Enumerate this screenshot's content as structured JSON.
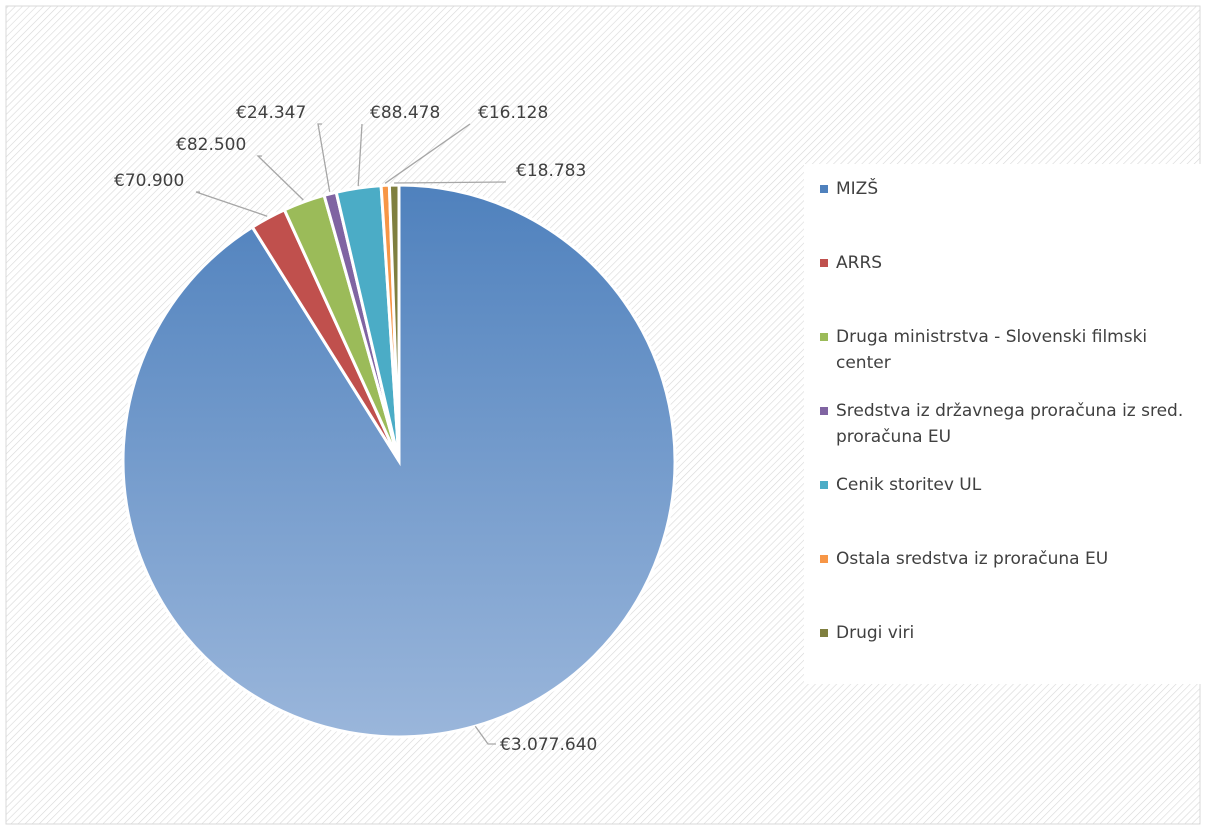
{
  "chart_data": {
    "type": "pie",
    "title": "",
    "series": [
      {
        "values": [
          3077640,
          70900,
          82500,
          24347,
          88478,
          16128,
          18783
        ]
      }
    ],
    "categories": [
      "MIZŠ",
      "ARRS",
      "Druga ministrstva - Slovenski filmski center",
      "Sredstva iz državnega proračuna iz sred. proračuna EU",
      "Cenik storitev UL",
      "Ostala sredstva iz proračuna EU",
      "Drugi viri"
    ],
    "data_labels": [
      "€3.077.640",
      "€70.900",
      "€82.500",
      "€24.347",
      "€88.478",
      "€16.128",
      "€18.783"
    ],
    "colors": [
      "#4f81bd",
      "#c0504d",
      "#9bbb59",
      "#8064a2",
      "#4bacc6",
      "#f79646",
      "#7f7f3f"
    ],
    "legend_position": "right"
  },
  "legend": {
    "items": [
      "MIZŠ",
      "ARRS",
      "Druga ministrstva - Slovenski filmski center",
      "Sredstva iz državnega proračuna iz sred. proračuna EU",
      "Cenik storitev UL",
      "Ostala sredstva iz proračuna EU",
      "Drugi viri"
    ]
  }
}
